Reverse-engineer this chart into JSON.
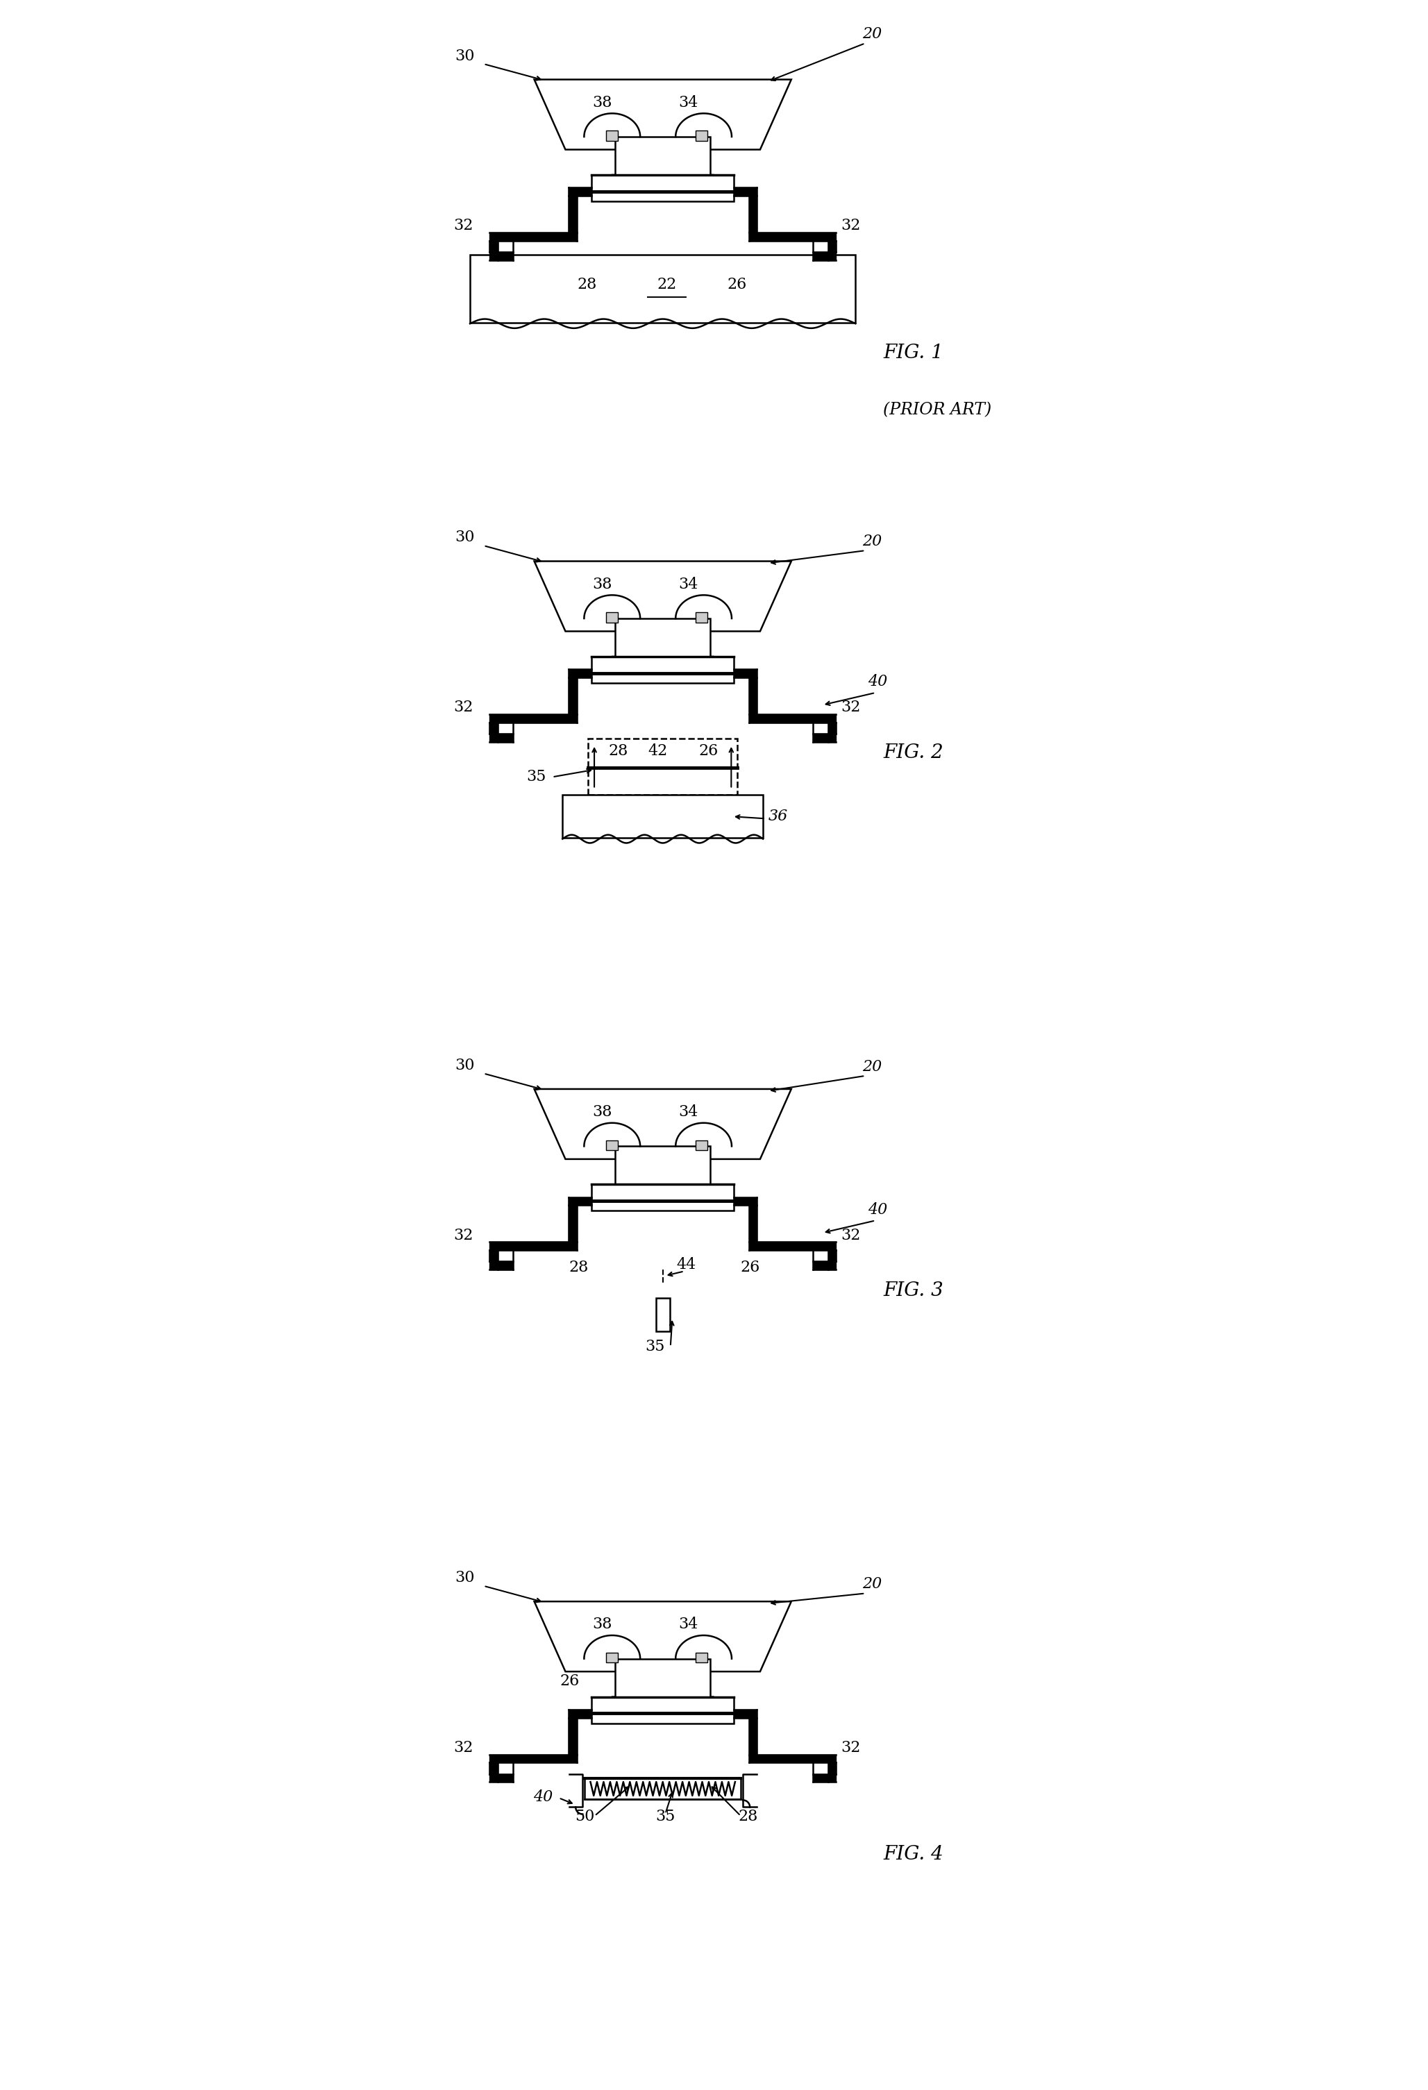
{
  "fig_width": 20.57,
  "fig_height": 30.11,
  "lw": 1.8,
  "tlw": 4.0,
  "fs": 16,
  "fls": 20,
  "fig_labels": [
    "FIG. 1",
    "FIG. 2",
    "FIG. 3",
    "FIG. 4"
  ],
  "prior_art_label": "(PRIOR ART)"
}
